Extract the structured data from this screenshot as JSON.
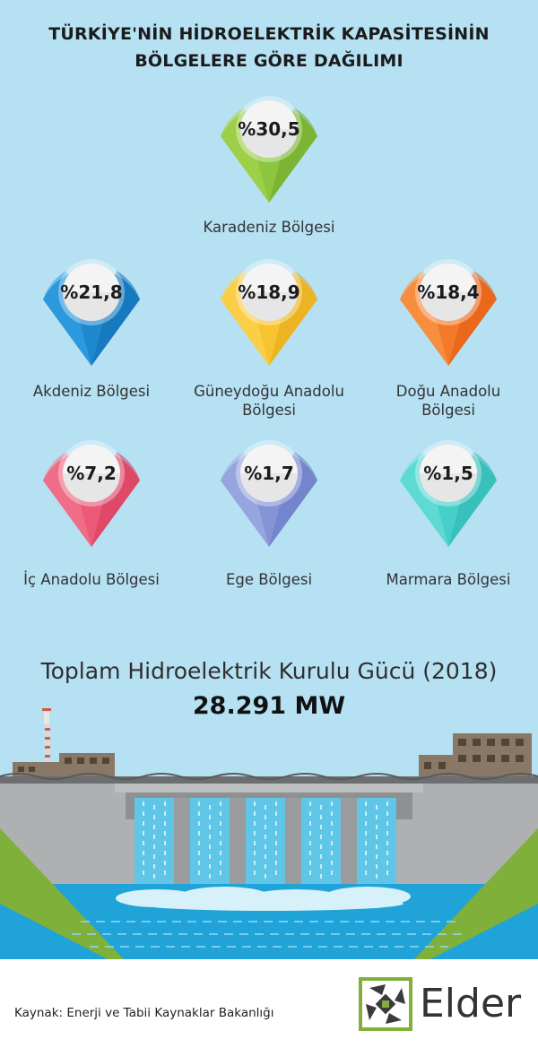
{
  "title_line1": "TÜRKİYE'NİN HİDROELEKTRİK KAPASİTESİNİN",
  "title_line2": "BÖLGELERE GÖRE DAĞILIMI",
  "chart_data": {
    "type": "pictograph",
    "title": "TÜRKİYE'NİN HİDROELEKTRİK KAPASİTESİNİN BÖLGELERE GÖRE DAĞILIMI",
    "categories": [
      "Karadeniz Bölgesi",
      "Akdeniz Bölgesi",
      "Güneydoğu Anadolu Bölgesi",
      "Doğu Anadolu Bölgesi",
      "İç Anadolu Bölgesi",
      "Ege Bölgesi",
      "Marmara Bölgesi"
    ],
    "values": [
      30.5,
      21.8,
      18.9,
      18.4,
      7.2,
      1.7,
      1.5
    ],
    "unit": "%",
    "items": [
      {
        "label": "%30,5",
        "name": [
          "Karadeniz Bölgesi"
        ],
        "value": 30.5,
        "color": "#8cc63f",
        "color_light": "#a8d64f",
        "color_dark": "#6fa82a"
      },
      {
        "label": "%21,8",
        "name": [
          "Akdeniz Bölgesi"
        ],
        "value": 21.8,
        "color": "#1e88cf",
        "color_light": "#36a3e6",
        "color_dark": "#1470b0"
      },
      {
        "label": "%18,9",
        "name": [
          "Güneydoğu Anadolu",
          "Bölgesi"
        ],
        "value": 18.9,
        "color": "#f7c331",
        "color_light": "#fbd556",
        "color_dark": "#e3a817"
      },
      {
        "label": "%18,4",
        "name": [
          "Doğu Anadolu",
          "Bölgesi"
        ],
        "value": 18.4,
        "color": "#f47a29",
        "color_light": "#f89a4e",
        "color_dark": "#e25a12"
      },
      {
        "label": "%7,2",
        "name": [
          "İç Anadolu Bölgesi"
        ],
        "value": 7.2,
        "color": "#ec5a78",
        "color_light": "#f27992",
        "color_dark": "#d43d5d"
      },
      {
        "label": "%1,7",
        "name": [
          "Ege Bölgesi"
        ],
        "value": 1.7,
        "color": "#8493d6",
        "color_light": "#a4b0e4",
        "color_dark": "#6a7ac6"
      },
      {
        "label": "%1,5",
        "name": [
          "Marmara Bölgesi"
        ],
        "value": 1.5,
        "color": "#45cfca",
        "color_light": "#6fdfdb",
        "color_dark": "#2bb5b0"
      }
    ]
  },
  "total": {
    "label": "Toplam Hidroelektrik Kurulu Gücü (2018)",
    "value": "28.291 MW"
  },
  "footer": {
    "source": "Kaynak: Enerji ve Tabii Kaynaklar Bakanlığı",
    "brand": "Elder"
  },
  "colors": {
    "background": "#b6e1f3",
    "water": "#1fa3d8",
    "waterfall": "#5fc6e8",
    "dam_gray": "#aeb0b1",
    "dam_dark": "#6d6e70",
    "grass": "#7fb03a",
    "building": "#8a7866"
  }
}
